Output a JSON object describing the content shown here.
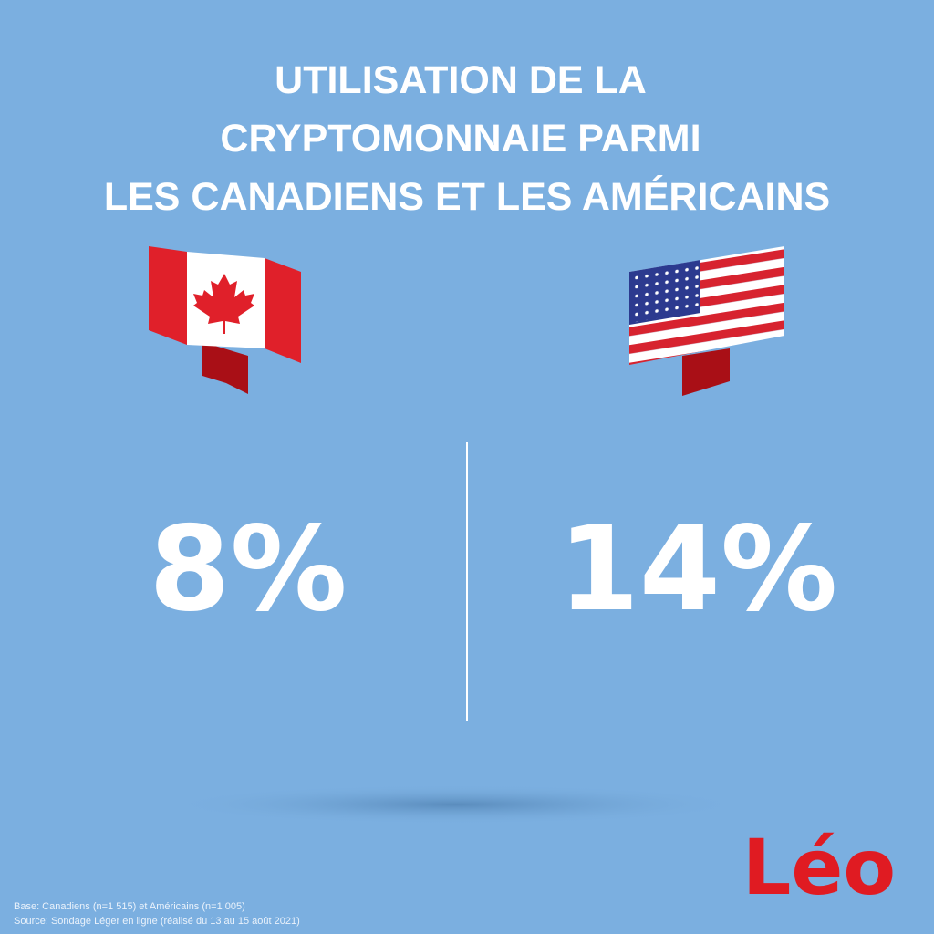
{
  "header": {
    "title_lines": [
      "UTILISATION DE LA",
      "CRYPTOMONNAIE PARMI",
      "LES CANADIENS ET LES AMÉRICAINS"
    ]
  },
  "stats": [
    {
      "value": "8%"
    },
    {
      "value": "14%"
    }
  ],
  "logo": "Léo",
  "footer": {
    "lines": [
      "Base: Canadiens (n=1 515) et Américains (n=1 005)",
      "Source: Sondage Léger en ligne (réalisé du 13 au 15 août 2021)"
    ]
  }
}
